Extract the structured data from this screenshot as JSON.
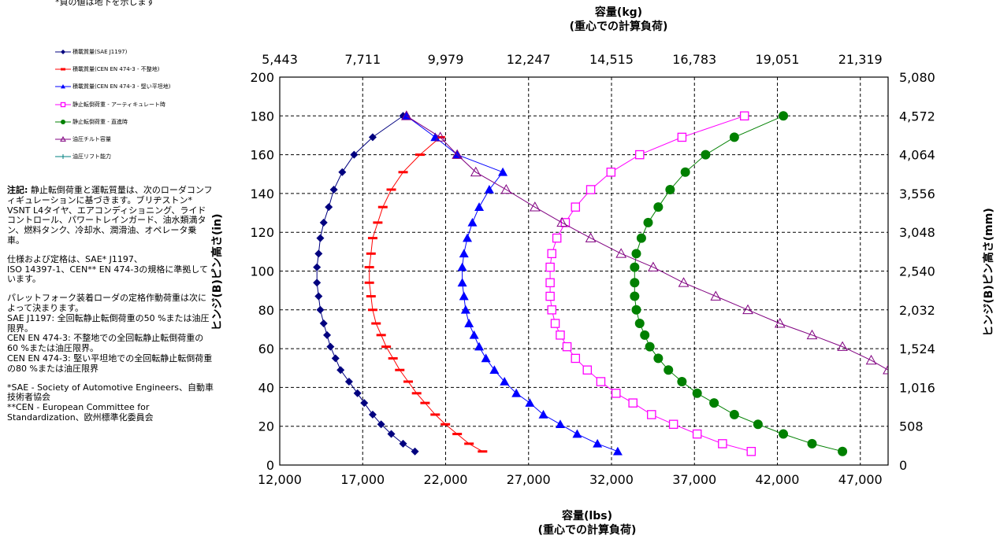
{
  "top_note": "*負の値は地下を示します",
  "legend": [
    {
      "label": "積載質量(SAE J1197)",
      "color": "#00007f",
      "marker": "diamond"
    },
    {
      "label": "積載質量(CEN EN 474-3 - 不整地)",
      "color": "#ff0000",
      "marker": "dash"
    },
    {
      "label": "積載質量(CEN EN 474-3 - 堅い平坦地)",
      "color": "#0000ff",
      "marker": "triangle"
    },
    {
      "label": "静止転倒荷重 - アーティキュレート時",
      "color": "#ff00ff",
      "marker": "square"
    },
    {
      "label": "静止転倒荷重 - 直進時",
      "color": "#008000",
      "marker": "circle"
    },
    {
      "label": "油圧チルト容量",
      "color": "#800080",
      "marker": "open-triangle"
    },
    {
      "label": "油圧リフト能力",
      "color": "#008080",
      "marker": "plus"
    }
  ],
  "notes": {
    "note1_bold": "注記:",
    "note1_text": " 静止転倒荷重と運転質量は、次のローダコンフィギュレーションに基づきます。ブリヂストン* VSNT L4タイヤ、エアコンディショニング、ライドコントロール、パワートレインガード、油水類満タン、燃料タンク、冷却水、潤滑油、オペレータ乗車。",
    "note2": "仕様および定格は、SAE* J1197、\nISO 14397-1、CEN** EN 474-3の規格に準拠しています。",
    "note3": "パレットフォーク装着ローダの定格作動荷重は次によって決まります。\nSAE J1197: 全回転静止転倒荷重の50 %または油圧限界。\nCEN EN 474-3: 不整地での全回転静止転倒荷重の60 %または油圧限界。\nCEN EN 474-3: 堅い平坦地での全回転静止転倒荷重の80 %または油圧限界",
    "note4": "*SAE - Society of Automotive Engineers、自動車技術者協会\n**CEN - European Committee for Standardization、欧州標準化委員会"
  },
  "chart_data": {
    "type": "scatter",
    "x_bottom": {
      "label": "容量(lbs)",
      "label2": "(重心での計算負荷)",
      "range": [
        12000,
        48000
      ],
      "ticks": [
        "12,000",
        "17,000",
        "22,000",
        "27,000",
        "32,000",
        "37,000",
        "42,000",
        "47,000"
      ]
    },
    "x_top": {
      "label": "容量(kg)",
      "label2": "(重心での計算負荷)",
      "ticks": [
        "5,443",
        "7,711",
        "9,979",
        "12,247",
        "14,515",
        "16,783",
        "19,051",
        "21,319"
      ]
    },
    "y_left": {
      "label": "ヒンジ(B)ピン高さ(in)",
      "range": [
        0,
        200
      ],
      "ticks": [
        "0",
        "20",
        "40",
        "60",
        "80",
        "100",
        "120",
        "140",
        "160",
        "180",
        "200"
      ]
    },
    "y_right": {
      "label": "ヒンジ(B)ピン高さ(mm)",
      "ticks": [
        "0",
        "508",
        "1,016",
        "1,524",
        "2,032",
        "2,540",
        "3,048",
        "3,556",
        "4,064",
        "4,572",
        "5,080"
      ]
    },
    "grid": true,
    "series": [
      {
        "name": "積載質量(SAE J1197)",
        "color": "#00007f",
        "marker": "diamond",
        "points": [
          [
            20000,
            7
          ],
          [
            19300,
            11
          ],
          [
            18600,
            16
          ],
          [
            18000,
            21
          ],
          [
            17500,
            26
          ],
          [
            17000,
            32
          ],
          [
            16600,
            37
          ],
          [
            16100,
            43
          ],
          [
            15600,
            49
          ],
          [
            15300,
            55
          ],
          [
            15000,
            61
          ],
          [
            14800,
            67
          ],
          [
            14600,
            73
          ],
          [
            14400,
            80
          ],
          [
            14300,
            87
          ],
          [
            14200,
            94
          ],
          [
            14200,
            102
          ],
          [
            14300,
            109
          ],
          [
            14400,
            117
          ],
          [
            14600,
            125
          ],
          [
            14900,
            133
          ],
          [
            15200,
            142
          ],
          [
            15700,
            151
          ],
          [
            16400,
            160
          ],
          [
            17500,
            169
          ],
          [
            19300,
            180
          ]
        ]
      },
      {
        "name": "積載質量(CEN EN 474-3 - 不整地)",
        "color": "#ff0000",
        "marker": "dash",
        "points": [
          [
            24000,
            7
          ],
          [
            23200,
            11
          ],
          [
            22500,
            16
          ],
          [
            21800,
            21
          ],
          [
            21200,
            26
          ],
          [
            20600,
            32
          ],
          [
            20100,
            37
          ],
          [
            19600,
            43
          ],
          [
            19100,
            49
          ],
          [
            18700,
            55
          ],
          [
            18300,
            61
          ],
          [
            18000,
            67
          ],
          [
            17700,
            73
          ],
          [
            17500,
            80
          ],
          [
            17400,
            87
          ],
          [
            17300,
            94
          ],
          [
            17300,
            102
          ],
          [
            17400,
            109
          ],
          [
            17500,
            117
          ],
          [
            17800,
            125
          ],
          [
            18100,
            133
          ],
          [
            18600,
            142
          ],
          [
            19300,
            151
          ],
          [
            20300,
            160
          ],
          [
            21500,
            169
          ]
        ]
      },
      {
        "name": "積載質量(CEN EN 474-3 - 堅い平坦地)",
        "color": "#0000ff",
        "marker": "triangle",
        "points": [
          [
            32000,
            7
          ],
          [
            30800,
            11
          ],
          [
            29600,
            16
          ],
          [
            28600,
            21
          ],
          [
            27600,
            26
          ],
          [
            26800,
            32
          ],
          [
            26000,
            37
          ],
          [
            25300,
            43
          ],
          [
            24700,
            49
          ],
          [
            24200,
            55
          ],
          [
            23800,
            61
          ],
          [
            23500,
            67
          ],
          [
            23200,
            73
          ],
          [
            23000,
            80
          ],
          [
            22900,
            87
          ],
          [
            22800,
            94
          ],
          [
            22800,
            102
          ],
          [
            22900,
            109
          ],
          [
            23100,
            117
          ],
          [
            23400,
            125
          ],
          [
            23800,
            133
          ],
          [
            24400,
            142
          ],
          [
            25200,
            151
          ],
          [
            22500,
            160
          ],
          [
            21200,
            169
          ],
          [
            19500,
            180
          ]
        ]
      },
      {
        "name": "静止転倒荷重 - アーティキュレート時",
        "color": "#ff00ff",
        "marker": "square",
        "points": [
          [
            39900,
            7
          ],
          [
            38200,
            11
          ],
          [
            36700,
            16
          ],
          [
            35300,
            21
          ],
          [
            34000,
            26
          ],
          [
            32900,
            32
          ],
          [
            31900,
            37
          ],
          [
            31000,
            43
          ],
          [
            30200,
            49
          ],
          [
            29500,
            55
          ],
          [
            29000,
            61
          ],
          [
            28600,
            67
          ],
          [
            28300,
            73
          ],
          [
            28100,
            80
          ],
          [
            28000,
            87
          ],
          [
            28000,
            94
          ],
          [
            28000,
            102
          ],
          [
            28100,
            109
          ],
          [
            28400,
            117
          ],
          [
            28900,
            125
          ],
          [
            29500,
            133
          ],
          [
            30400,
            142
          ],
          [
            31600,
            151
          ],
          [
            33300,
            160
          ],
          [
            35800,
            169
          ],
          [
            39500,
            180
          ]
        ]
      },
      {
        "name": "静止転倒荷重 - 直進時",
        "color": "#008000",
        "marker": "circle",
        "points": [
          [
            45300,
            7
          ],
          [
            43500,
            11
          ],
          [
            41800,
            16
          ],
          [
            40300,
            21
          ],
          [
            38900,
            26
          ],
          [
            37700,
            32
          ],
          [
            36700,
            37
          ],
          [
            35800,
            43
          ],
          [
            35000,
            49
          ],
          [
            34400,
            55
          ],
          [
            33900,
            61
          ],
          [
            33600,
            67
          ],
          [
            33300,
            73
          ],
          [
            33100,
            80
          ],
          [
            33000,
            87
          ],
          [
            33000,
            94
          ],
          [
            33000,
            102
          ],
          [
            33100,
            109
          ],
          [
            33400,
            117
          ],
          [
            33800,
            125
          ],
          [
            34400,
            133
          ],
          [
            35100,
            142
          ],
          [
            36000,
            151
          ],
          [
            37200,
            160
          ],
          [
            38900,
            169
          ],
          [
            41800,
            180
          ]
        ]
      },
      {
        "name": "油圧チルト容量",
        "color": "#800080",
        "marker": "open-triangle",
        "points": [
          [
            19500,
            180
          ],
          [
            21500,
            169
          ],
          [
            22500,
            160
          ],
          [
            23600,
            151
          ],
          [
            25400,
            142
          ],
          [
            27100,
            133
          ],
          [
            28700,
            125
          ],
          [
            30400,
            117
          ],
          [
            32200,
            109
          ],
          [
            34100,
            102
          ],
          [
            35900,
            94
          ],
          [
            37800,
            87
          ],
          [
            39700,
            80
          ],
          [
            41600,
            73
          ],
          [
            43500,
            67
          ],
          [
            45300,
            61
          ],
          [
            47000,
            54
          ],
          [
            48000,
            49
          ]
        ]
      },
      {
        "name": "油圧リフト能力",
        "color": "#008080",
        "marker": "plus",
        "points": []
      }
    ]
  }
}
